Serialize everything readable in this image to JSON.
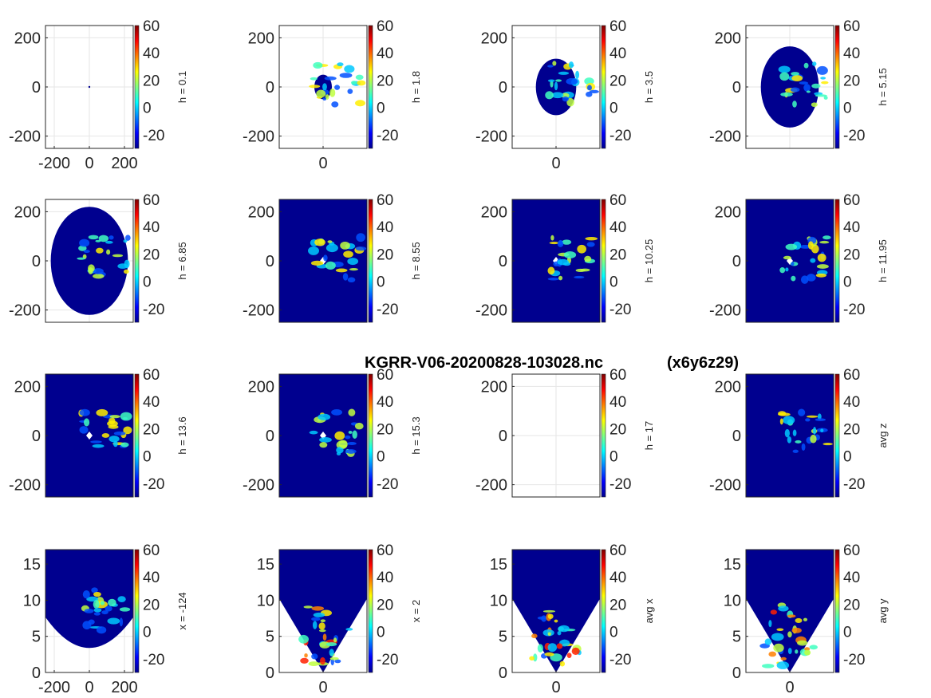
{
  "title": "KGRR-V06-20200828-103028.nc",
  "title_suffix": "(x6y6z29)",
  "colors": {
    "background_fill": "#00008f",
    "colormap": "jet",
    "axis": "#262626",
    "grid": "#e6e6e6"
  },
  "chart_data": [
    {
      "type": "heatmap",
      "row": 0,
      "col": 0,
      "colorbar_label": "h = 0.1",
      "ylim": [
        -250,
        250
      ],
      "xlim": [
        -250,
        250
      ],
      "yticks": [
        -200,
        0,
        200
      ],
      "xticks": [
        -200,
        0,
        200
      ],
      "clim": [
        -30,
        60
      ],
      "cbticks": [
        -20,
        0,
        20,
        40,
        60
      ],
      "coverage": "point",
      "coverage_radius": 0
    },
    {
      "type": "heatmap",
      "row": 0,
      "col": 1,
      "colorbar_label": "h = 1.8",
      "ylim": [
        -250,
        250
      ],
      "yticks": [
        -200,
        0,
        200
      ],
      "xticks": [
        0
      ],
      "clim": [
        -30,
        60
      ],
      "cbticks": [
        -20,
        0,
        20,
        40,
        60
      ],
      "coverage": "ellipse",
      "coverage_radius": 50
    },
    {
      "type": "heatmap",
      "row": 0,
      "col": 2,
      "colorbar_label": "h = 3.5",
      "ylim": [
        -250,
        250
      ],
      "yticks": [
        -200,
        0,
        200
      ],
      "xticks": [
        0
      ],
      "clim": [
        -30,
        60
      ],
      "cbticks": [
        -20,
        0,
        20,
        40,
        60
      ],
      "coverage": "ellipse",
      "coverage_radius": 115
    },
    {
      "type": "heatmap",
      "row": 0,
      "col": 3,
      "colorbar_label": "h = 5.15",
      "ylim": [
        -250,
        250
      ],
      "yticks": [
        -200,
        0,
        200
      ],
      "xticks": [],
      "clim": [
        -30,
        60
      ],
      "cbticks": [
        -20,
        0,
        20,
        40,
        60
      ],
      "coverage": "ellipse",
      "coverage_radius": 165
    },
    {
      "type": "heatmap",
      "row": 1,
      "col": 0,
      "colorbar_label": "h = 6.85",
      "ylim": [
        -250,
        250
      ],
      "yticks": [
        -200,
        0,
        200
      ],
      "xticks": [],
      "clim": [
        -30,
        60
      ],
      "cbticks": [
        -20,
        0,
        20,
        40,
        60
      ],
      "coverage": "ellipse",
      "coverage_radius": 220
    },
    {
      "type": "heatmap",
      "row": 1,
      "col": 1,
      "colorbar_label": "h = 8.55",
      "ylim": [
        -250,
        250
      ],
      "yticks": [
        -200,
        0,
        200
      ],
      "xticks": [],
      "clim": [
        -30,
        60
      ],
      "cbticks": [
        -20,
        0,
        20,
        40,
        60
      ],
      "coverage": "full"
    },
    {
      "type": "heatmap",
      "row": 1,
      "col": 2,
      "colorbar_label": "h = 10.25",
      "ylim": [
        -250,
        250
      ],
      "yticks": [
        -200,
        0,
        200
      ],
      "xticks": [],
      "clim": [
        -30,
        60
      ],
      "cbticks": [
        -20,
        0,
        20,
        40,
        60
      ],
      "coverage": "full"
    },
    {
      "type": "heatmap",
      "row": 1,
      "col": 3,
      "colorbar_label": "h = 11.95",
      "ylim": [
        -250,
        250
      ],
      "yticks": [
        -200,
        0,
        200
      ],
      "xticks": [],
      "clim": [
        -30,
        60
      ],
      "cbticks": [
        -20,
        0,
        20,
        40,
        60
      ],
      "coverage": "full"
    },
    {
      "type": "heatmap",
      "row": 2,
      "col": 0,
      "colorbar_label": "h = 13.6",
      "ylim": [
        -250,
        250
      ],
      "yticks": [
        -200,
        0,
        200
      ],
      "xticks": [],
      "clim": [
        -30,
        60
      ],
      "cbticks": [
        -20,
        0,
        20,
        40,
        60
      ],
      "coverage": "full"
    },
    {
      "type": "heatmap",
      "row": 2,
      "col": 1,
      "colorbar_label": "h = 15.3",
      "ylim": [
        -250,
        250
      ],
      "yticks": [
        -200,
        0,
        200
      ],
      "xticks": [],
      "clim": [
        -30,
        60
      ],
      "cbticks": [
        -20,
        0,
        20,
        40,
        60
      ],
      "coverage": "full"
    },
    {
      "type": "heatmap",
      "row": 2,
      "col": 2,
      "colorbar_label": "h = 17",
      "ylim": [
        -250,
        250
      ],
      "yticks": [
        -200,
        0,
        200
      ],
      "xticks": [],
      "clim": [
        -30,
        60
      ],
      "cbticks": [
        -20,
        0,
        20,
        40,
        60
      ],
      "coverage": "empty"
    },
    {
      "type": "heatmap",
      "row": 2,
      "col": 3,
      "colorbar_label": "avg z",
      "ylim": [
        -250,
        250
      ],
      "yticks": [
        -200,
        0,
        200
      ],
      "xticks": [],
      "clim": [
        -30,
        60
      ],
      "cbticks": [
        -20,
        0,
        20,
        40,
        60
      ],
      "coverage": "full"
    },
    {
      "type": "heatmap",
      "row": 3,
      "col": 0,
      "colorbar_label": "x = -124",
      "ylim": [
        0,
        17
      ],
      "xlim": [
        -250,
        250
      ],
      "yticks": [
        0,
        5,
        10,
        15
      ],
      "xticks": [
        -200,
        0,
        200
      ],
      "clim": [
        -30,
        60
      ],
      "cbticks": [
        -20,
        0,
        20,
        40,
        60
      ],
      "coverage": "bowl"
    },
    {
      "type": "heatmap",
      "row": 3,
      "col": 1,
      "colorbar_label": "x = 2",
      "ylim": [
        0,
        17
      ],
      "yticks": [
        0,
        5,
        10,
        15
      ],
      "xticks": [
        0
      ],
      "clim": [
        -30,
        60
      ],
      "cbticks": [
        -20,
        0,
        20,
        40,
        60
      ],
      "coverage": "cone"
    },
    {
      "type": "heatmap",
      "row": 3,
      "col": 2,
      "colorbar_label": "avg x",
      "ylim": [
        0,
        17
      ],
      "yticks": [
        0,
        5,
        10,
        15
      ],
      "xticks": [
        0
      ],
      "clim": [
        -30,
        60
      ],
      "cbticks": [
        -20,
        0,
        20,
        40,
        60
      ],
      "coverage": "cone"
    },
    {
      "type": "heatmap",
      "row": 3,
      "col": 3,
      "colorbar_label": "avg y",
      "ylim": [
        0,
        17
      ],
      "yticks": [
        0,
        5,
        10,
        15
      ],
      "xticks": [
        0
      ],
      "clim": [
        -30,
        60
      ],
      "cbticks": [
        -20,
        0,
        20,
        40,
        60
      ],
      "coverage": "cone"
    }
  ]
}
